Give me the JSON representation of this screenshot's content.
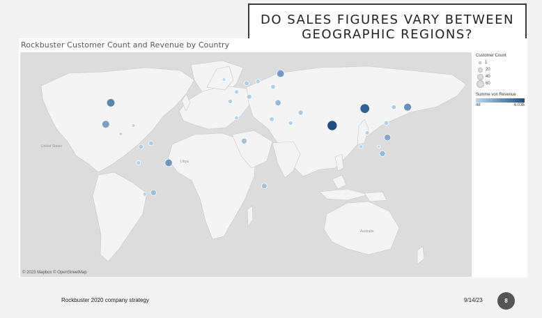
{
  "slide": {
    "title": "DO SALES FIGURES VARY BETWEEN\nGEOGRAPHIC REGIONS?",
    "footer_text": "Rockbuster 2020 company strategy",
    "date": "9/14/23",
    "page_number": "8"
  },
  "viz": {
    "title": "Rockbuster Customer Count and Revenue by Country",
    "credit": "© 2023 Mapbox © OpenStreetMap",
    "map_labels": {
      "australia": "Australia",
      "usa": "United States",
      "libya": "Libya"
    }
  },
  "legend": {
    "size_title": "Customer Count",
    "size_values": [
      "1",
      "20",
      "40",
      "60"
    ],
    "color_title": "Summe von Revenue",
    "color_min": "48",
    "color_max": "6.035",
    "color_low": "#b9d9ef",
    "color_high": "#1f4e86"
  },
  "chart_data": {
    "type": "scatter",
    "title": "Rockbuster Customer Count and Revenue by Country",
    "map_markers": [
      {
        "lon": 37,
        "lat": 56,
        "count": 28,
        "revenue": 2800
      },
      {
        "lon": -98,
        "lat": 39,
        "count": 36,
        "revenue": 3700
      },
      {
        "lon": -102,
        "lat": 23,
        "count": 30,
        "revenue": 2500
      },
      {
        "lon": 104,
        "lat": 35,
        "count": 53,
        "revenue": 5250
      },
      {
        "lon": 78,
        "lat": 22,
        "count": 60,
        "revenue": 6035
      },
      {
        "lon": 138,
        "lat": 36,
        "count": 31,
        "revenue": 3200
      },
      {
        "lon": -52,
        "lat": -10,
        "count": 28,
        "revenue": 2900
      },
      {
        "lon": 118,
        "lat": -2,
        "count": 14,
        "revenue": 1400
      },
      {
        "lon": 122,
        "lat": 12,
        "count": 20,
        "revenue": 2100
      },
      {
        "lon": 35,
        "lat": 39,
        "count": 15,
        "revenue": 1500
      },
      {
        "lon": -64,
        "lat": -34,
        "count": 13,
        "revenue": 1200
      },
      {
        "lon": 8,
        "lat": 9,
        "count": 13,
        "revenue": 1100
      },
      {
        "lon": 127,
        "lat": 36,
        "count": 6,
        "revenue": 600
      },
      {
        "lon": 121,
        "lat": 24,
        "count": 6,
        "revenue": 500
      },
      {
        "lon": 53,
        "lat": 32,
        "count": 8,
        "revenue": 700
      },
      {
        "lon": 45,
        "lat": 24,
        "count": 5,
        "revenue": 450
      },
      {
        "lon": 10,
        "lat": 51,
        "count": 7,
        "revenue": 600
      },
      {
        "lon": 2,
        "lat": 46,
        "count": 4,
        "revenue": 400
      },
      {
        "lon": -3,
        "lat": 40,
        "count": 5,
        "revenue": 450
      },
      {
        "lon": 12,
        "lat": 43,
        "count": 7,
        "revenue": 650
      },
      {
        "lon": 19,
        "lat": 52,
        "count": 5,
        "revenue": 400
      },
      {
        "lon": 31,
        "lat": 49,
        "count": 6,
        "revenue": 550
      },
      {
        "lon": -8,
        "lat": 53,
        "count": 2,
        "revenue": 150
      },
      {
        "lon": 30,
        "lat": 27,
        "count": 6,
        "revenue": 500
      },
      {
        "lon": 2,
        "lat": 28,
        "count": 3,
        "revenue": 250
      },
      {
        "lon": 24,
        "lat": -29,
        "count": 11,
        "revenue": 1000
      },
      {
        "lon": -74,
        "lat": 4,
        "count": 6,
        "revenue": 550
      },
      {
        "lon": -66,
        "lat": 7,
        "count": 7,
        "revenue": 650
      },
      {
        "lon": -76,
        "lat": -10,
        "count": 4,
        "revenue": 400
      },
      {
        "lon": -71,
        "lat": -35,
        "count": 3,
        "revenue": 300
      },
      {
        "lon": -90,
        "lat": 15,
        "count": 2,
        "revenue": 150
      },
      {
        "lon": -80,
        "lat": 22,
        "count": 2,
        "revenue": 120
      },
      {
        "lon": 101,
        "lat": 4,
        "count": 3,
        "revenue": 300
      },
      {
        "lon": 106,
        "lat": 16,
        "count": 4,
        "revenue": 350
      },
      {
        "lon": 115,
        "lat": 4,
        "count": 1,
        "revenue": 48
      }
    ]
  }
}
